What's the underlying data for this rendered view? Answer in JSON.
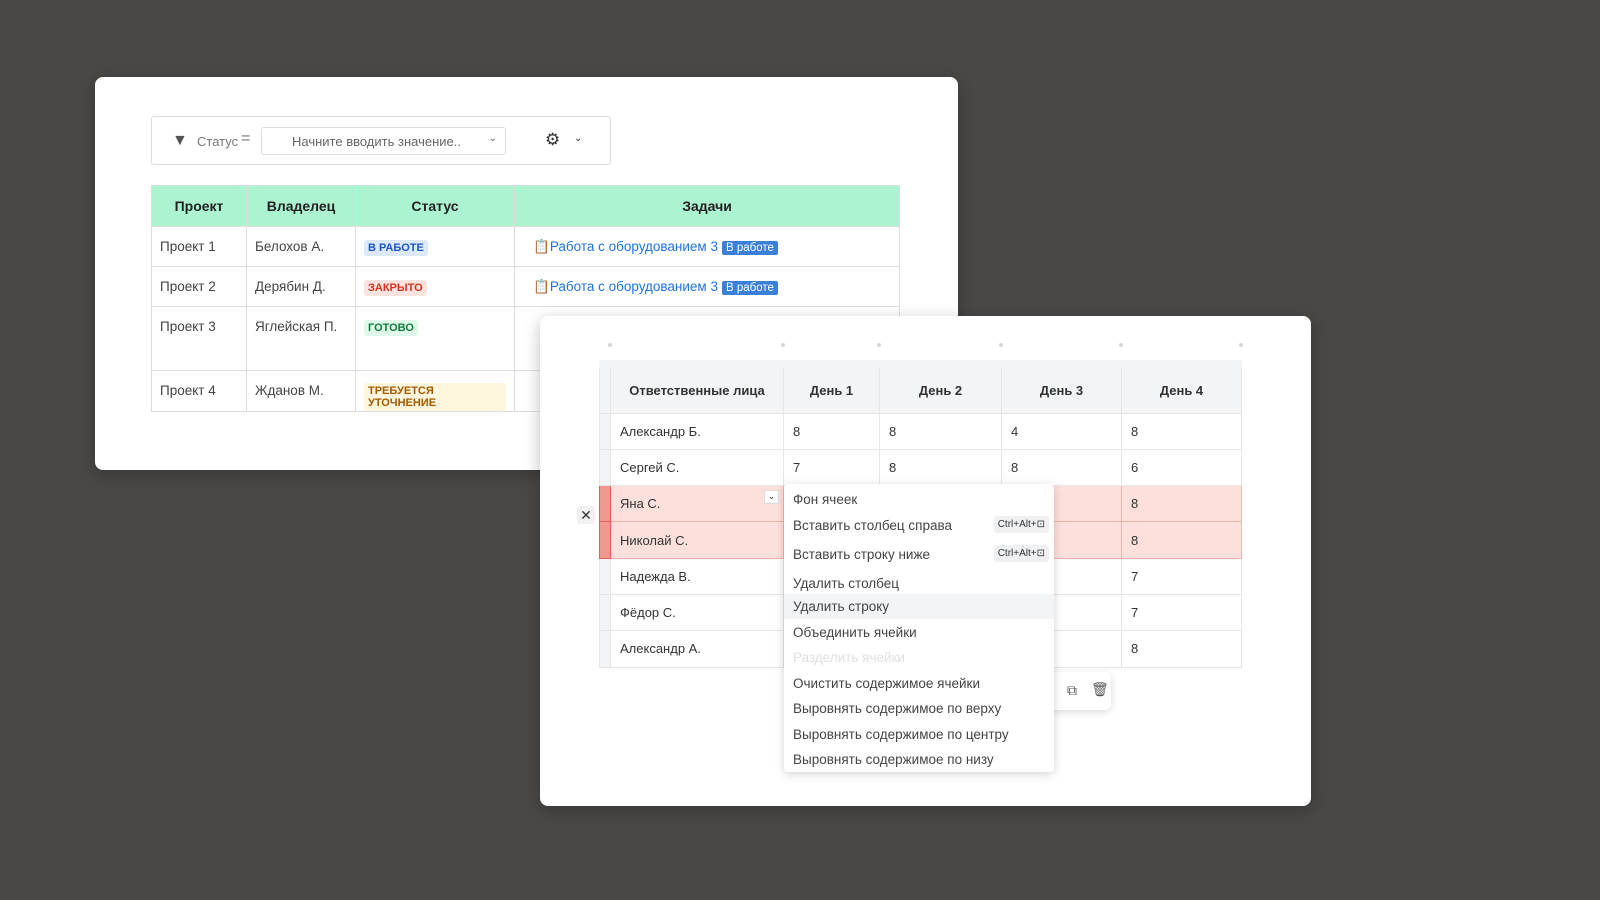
{
  "filter": {
    "field_label": "Статус",
    "operator": "=",
    "placeholder": "Начните вводить значение.."
  },
  "table1": {
    "headers": [
      "Проект",
      "Владелец",
      "Статус",
      "Задачи"
    ],
    "rows": [
      {
        "project": "Проект 1",
        "owner": "Белохов А.",
        "status": "В РАБОТЕ",
        "task": "Работа с оборудованием 3",
        "task_status": "В работе"
      },
      {
        "project": "Проект 2",
        "owner": "Дерябин Д.",
        "status": "ЗАКРЫТО",
        "task": "Работа с оборудованием 3",
        "task_status": "В работе"
      },
      {
        "project": "Проект 3",
        "owner": "Яглейская П.",
        "status": "ГОТОВО"
      },
      {
        "project": "Проект 4",
        "owner": "Жданов М.",
        "status": "ТРЕБУЕТСЯ УТОЧНЕНИЕ"
      }
    ]
  },
  "table2": {
    "headers": [
      "Ответственные лица",
      "День 1",
      "День 2",
      "День 3",
      "День 4"
    ],
    "rows": [
      {
        "name": "Александр Б.",
        "d1": "8",
        "d2": "8",
        "d3": "4",
        "d4": "8"
      },
      {
        "name": "Сергей С.",
        "d1": "7",
        "d2": "8",
        "d3": "8",
        "d4": "6"
      },
      {
        "name": "Яна С.",
        "d4": "8"
      },
      {
        "name": "Николай С.",
        "d4": "8"
      },
      {
        "name": "Надежда В.",
        "d4": "7"
      },
      {
        "name": "Фёдор С.",
        "d4": "7"
      },
      {
        "name": "Александр А.",
        "d4": "8"
      }
    ]
  },
  "context_menu": {
    "items": [
      "Фон ячеек",
      "Вставить столбец справа",
      "Вставить строку ниже",
      "Удалить столбец",
      "Удалить строку",
      "Объединить ячейки",
      "Разделить ячейки",
      "Очистить содержимое ячейки",
      "Выровнять содержимое по верху",
      "Выровнять содержимое по центру",
      "Выровнять содержимое по низу"
    ],
    "shortcut_col": "Ctrl+Alt+",
    "shortcut_row": "Ctrl+Alt+"
  },
  "colors": {
    "background": "#4a4846",
    "header_green": "#acf3d1",
    "selected_row": "#fde0dc",
    "link": "#1f73e0"
  }
}
